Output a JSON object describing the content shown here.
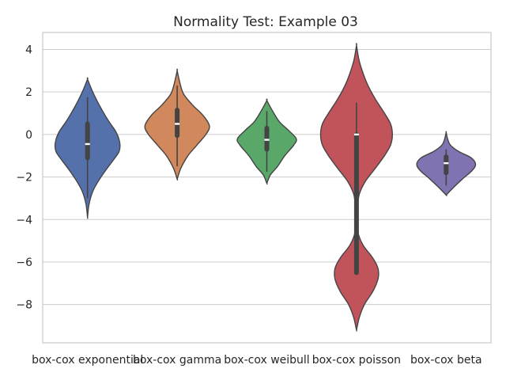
{
  "chart_data": {
    "type": "violin",
    "title": "Normality Test: Example 03",
    "xlabel": "",
    "ylabel": "",
    "ylim": [
      -9.8,
      4.8
    ],
    "yticks": [
      4,
      2,
      0,
      -2,
      -4,
      -6,
      -8
    ],
    "grid": true,
    "categories": [
      "box-cox exponential",
      "box-cox gamma",
      "box-cox weibull",
      "box-cox poisson",
      "box-cox beta"
    ],
    "series": [
      {
        "category": "box-cox exponential",
        "color": "#5471ab",
        "min": -3.0,
        "q1": -1.1,
        "median": -0.45,
        "q3": 0.5,
        "max": 1.75,
        "profile": [
          [
            -3.9,
            0.0
          ],
          [
            -3.3,
            0.04
          ],
          [
            -2.7,
            0.14
          ],
          [
            -2.2,
            0.3
          ],
          [
            -1.7,
            0.5
          ],
          [
            -1.2,
            0.72
          ],
          [
            -0.8,
            0.88
          ],
          [
            -0.4,
            0.9
          ],
          [
            0.1,
            0.8
          ],
          [
            0.6,
            0.6
          ],
          [
            1.1,
            0.42
          ],
          [
            1.6,
            0.26
          ],
          [
            2.1,
            0.12
          ],
          [
            2.6,
            0.0
          ]
        ]
      },
      {
        "category": "box-cox gamma",
        "color": "#d1885c",
        "min": -1.5,
        "q1": -0.05,
        "median": 0.5,
        "q3": 1.15,
        "max": 2.3,
        "profile": [
          [
            -2.1,
            0.0
          ],
          [
            -1.6,
            0.1
          ],
          [
            -1.0,
            0.3
          ],
          [
            -0.5,
            0.55
          ],
          [
            0.0,
            0.8
          ],
          [
            0.4,
            0.9
          ],
          [
            0.9,
            0.72
          ],
          [
            1.4,
            0.42
          ],
          [
            1.9,
            0.18
          ],
          [
            2.4,
            0.08
          ],
          [
            3.0,
            0.0
          ]
        ]
      },
      {
        "category": "box-cox weibull",
        "color": "#59a869",
        "min": -1.75,
        "q1": -0.7,
        "median": -0.25,
        "q3": 0.3,
        "max": 1.1,
        "profile": [
          [
            -2.3,
            0.0
          ],
          [
            -1.9,
            0.1
          ],
          [
            -1.5,
            0.3
          ],
          [
            -1.0,
            0.5
          ],
          [
            -0.5,
            0.75
          ],
          [
            -0.2,
            0.82
          ],
          [
            0.2,
            0.6
          ],
          [
            0.6,
            0.35
          ],
          [
            1.1,
            0.16
          ],
          [
            1.6,
            0.0
          ]
        ]
      },
      {
        "category": "box-cox poisson",
        "color": "#c1535b",
        "min": -6.5,
        "q1": -6.5,
        "median": 0.0,
        "q3": 0.0,
        "max": 1.5,
        "profile": [
          [
            -9.2,
            0.0
          ],
          [
            -8.6,
            0.08
          ],
          [
            -8.0,
            0.22
          ],
          [
            -7.4,
            0.45
          ],
          [
            -6.8,
            0.6
          ],
          [
            -6.3,
            0.6
          ],
          [
            -5.8,
            0.45
          ],
          [
            -5.2,
            0.18
          ],
          [
            -4.6,
            0.04
          ],
          [
            -4.0,
            0.02
          ],
          [
            -3.4,
            0.03
          ],
          [
            -2.8,
            0.08
          ],
          [
            -2.2,
            0.25
          ],
          [
            -1.6,
            0.52
          ],
          [
            -1.0,
            0.78
          ],
          [
            -0.5,
            0.95
          ],
          [
            0.0,
            1.0
          ],
          [
            0.5,
            0.95
          ],
          [
            1.0,
            0.78
          ],
          [
            1.6,
            0.55
          ],
          [
            2.2,
            0.35
          ],
          [
            2.8,
            0.2
          ],
          [
            3.5,
            0.07
          ],
          [
            4.2,
            0.0
          ]
        ]
      },
      {
        "category": "box-cox beta",
        "color": "#8173b1",
        "min": -2.4,
        "q1": -1.8,
        "median": -1.35,
        "q3": -1.05,
        "max": -0.7,
        "profile": [
          [
            -2.85,
            0.0
          ],
          [
            -2.5,
            0.2
          ],
          [
            -2.1,
            0.45
          ],
          [
            -1.7,
            0.72
          ],
          [
            -1.4,
            0.82
          ],
          [
            -1.1,
            0.7
          ],
          [
            -0.8,
            0.35
          ],
          [
            -0.5,
            0.12
          ],
          [
            -0.2,
            0.04
          ],
          [
            0.1,
            0.0
          ]
        ]
      }
    ]
  }
}
